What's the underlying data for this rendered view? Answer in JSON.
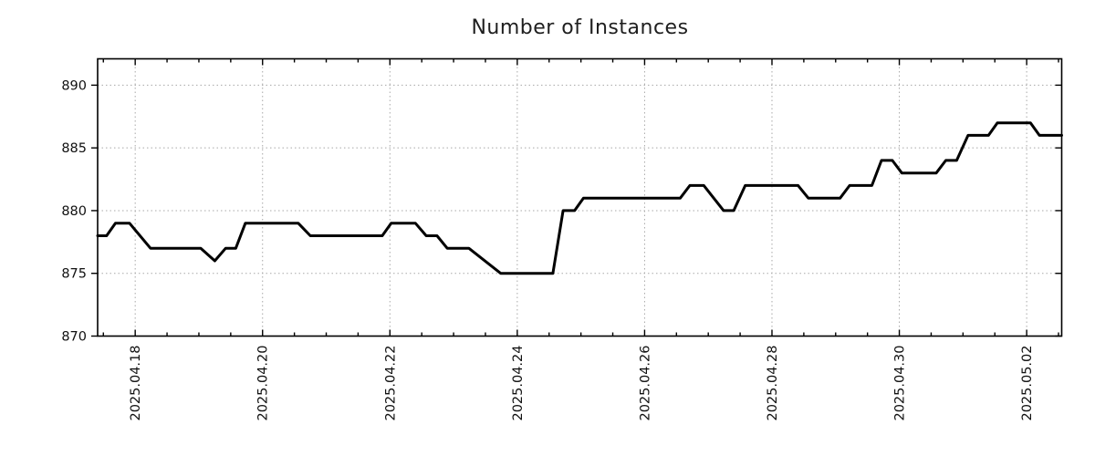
{
  "chart_data": {
    "type": "line",
    "title": "Number of Instances",
    "legend": "none",
    "grid": "major-dotted",
    "series": [
      {
        "name": "instances",
        "color": "#000000",
        "line_width": 3,
        "points": [
          [
            -0.59,
            878
          ],
          [
            -0.45,
            878
          ],
          [
            -0.31,
            879
          ],
          [
            -0.09,
            879
          ],
          [
            0.24,
            877
          ],
          [
            1.03,
            877
          ],
          [
            1.25,
            876
          ],
          [
            1.42,
            877
          ],
          [
            1.58,
            877
          ],
          [
            1.73,
            879
          ],
          [
            2.56,
            879
          ],
          [
            2.75,
            878
          ],
          [
            3.88,
            878
          ],
          [
            4.02,
            879
          ],
          [
            4.4,
            879
          ],
          [
            4.57,
            878
          ],
          [
            4.74,
            878
          ],
          [
            4.9,
            877
          ],
          [
            5.24,
            877
          ],
          [
            5.74,
            875
          ],
          [
            6.56,
            875
          ],
          [
            6.72,
            880
          ],
          [
            6.9,
            880
          ],
          [
            7.04,
            881
          ],
          [
            8.56,
            881
          ],
          [
            8.71,
            882
          ],
          [
            8.93,
            882
          ],
          [
            9.24,
            880
          ],
          [
            9.4,
            880
          ],
          [
            9.58,
            882
          ],
          [
            10.41,
            882
          ],
          [
            10.57,
            881
          ],
          [
            11.07,
            881
          ],
          [
            11.22,
            882
          ],
          [
            11.57,
            882
          ],
          [
            11.72,
            884
          ],
          [
            11.89,
            884
          ],
          [
            12.04,
            883
          ],
          [
            12.58,
            883
          ],
          [
            12.73,
            884
          ],
          [
            12.9,
            884
          ],
          [
            13.08,
            886
          ],
          [
            13.4,
            886
          ],
          [
            13.54,
            887
          ],
          [
            14.06,
            887
          ],
          [
            14.2,
            886
          ],
          [
            14.55,
            886
          ]
        ]
      }
    ],
    "x_axis": {
      "range_days": [
        -0.59,
        14.55
      ],
      "epoch_label": "2025.04.18",
      "major_ticks": [
        {
          "t": 0,
          "label": "2025.04.18"
        },
        {
          "t": 2,
          "label": "2025.04.20"
        },
        {
          "t": 4,
          "label": "2025.04.22"
        },
        {
          "t": 6,
          "label": "2025.04.24"
        },
        {
          "t": 8,
          "label": "2025.04.26"
        },
        {
          "t": 10,
          "label": "2025.04.28"
        },
        {
          "t": 12,
          "label": "2025.04.30"
        },
        {
          "t": 14,
          "label": "2025.05.02"
        }
      ],
      "minor_tick_step": 0.5
    },
    "y_axis": {
      "range": [
        870,
        892.1
      ],
      "major_ticks": [
        870,
        875,
        880,
        885,
        890
      ]
    },
    "colors": {
      "line": "#000000",
      "grid": "#a8a8a8",
      "spine": "#000000",
      "text": "#111111",
      "title": "#1f1f1f",
      "background": "#ffffff"
    }
  }
}
